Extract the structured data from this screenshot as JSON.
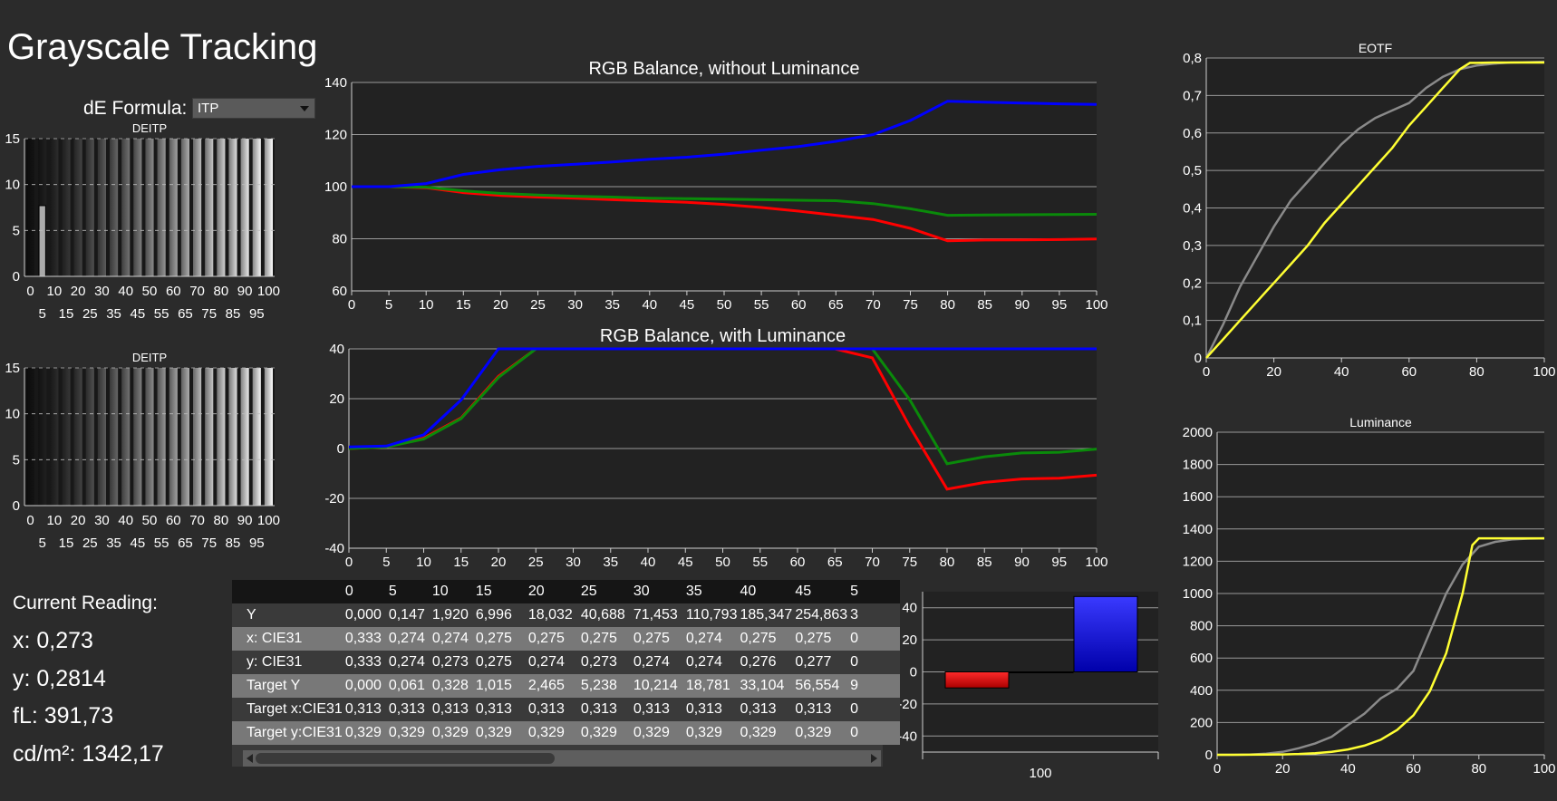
{
  "title": "Grayscale Tracking",
  "de_formula": {
    "label": "dE Formula:",
    "value": "ITP"
  },
  "current_reading": {
    "title": "Current Reading:",
    "x": "x: 0,273",
    "y": "y: 0,2814",
    "fL": "fL: 391,73",
    "cdm2": "cd/m²: 1342,17"
  },
  "colors": {
    "red": "#ff0000",
    "green": "#0a8a0a",
    "blue": "#0000ff",
    "yellow": "#ffff33",
    "gray": "#8a8a8a",
    "plot_bg": "#222222"
  },
  "chart_data": [
    {
      "id": "deitp_top",
      "type": "bar",
      "title": "DEITP",
      "categories": [
        0,
        5,
        10,
        15,
        20,
        25,
        30,
        35,
        40,
        45,
        50,
        55,
        60,
        65,
        70,
        75,
        80,
        85,
        90,
        95,
        100
      ],
      "values": [
        0,
        7.7,
        0,
        0,
        0,
        0,
        0,
        0,
        0,
        0,
        0,
        0,
        0,
        0,
        0,
        0,
        0,
        0,
        0,
        0,
        0
      ],
      "ylim": [
        0,
        15
      ],
      "yticks": [
        0,
        5,
        10,
        15
      ],
      "xticks_top": [
        "0",
        "10",
        "20",
        "30",
        "40",
        "50",
        "60",
        "70",
        "80",
        "90",
        "100"
      ],
      "xticks_bottom": [
        "5",
        "15",
        "25",
        "35",
        "45",
        "55",
        "65",
        "75",
        "85",
        "95"
      ]
    },
    {
      "id": "deitp_bottom",
      "type": "bar",
      "title": "DEITP",
      "categories": [
        0,
        5,
        10,
        15,
        20,
        25,
        30,
        35,
        40,
        45,
        50,
        55,
        60,
        65,
        70,
        75,
        80,
        85,
        90,
        95,
        100
      ],
      "values": [
        0,
        0,
        0,
        0,
        0,
        0,
        0,
        0,
        0,
        0,
        0,
        0,
        0,
        0,
        0,
        0,
        0,
        0,
        0,
        0,
        0
      ],
      "ylim": [
        0,
        15
      ],
      "yticks": [
        0,
        5,
        10,
        15
      ],
      "xticks_top": [
        "0",
        "10",
        "20",
        "30",
        "40",
        "50",
        "60",
        "70",
        "80",
        "90",
        "100"
      ],
      "xticks_bottom": [
        "5",
        "15",
        "25",
        "35",
        "45",
        "55",
        "65",
        "75",
        "85",
        "95"
      ]
    },
    {
      "id": "rgb_without",
      "type": "line",
      "title": "RGB Balance, without Luminance",
      "x": [
        0,
        5,
        10,
        15,
        20,
        25,
        30,
        35,
        40,
        45,
        50,
        55,
        60,
        65,
        70,
        75,
        80,
        85,
        90,
        95,
        100
      ],
      "xlim": [
        0,
        100
      ],
      "ylim": [
        60,
        140
      ],
      "yticks": [
        60,
        80,
        100,
        120,
        140
      ],
      "xticks": [
        0,
        5,
        10,
        15,
        20,
        25,
        30,
        35,
        40,
        45,
        50,
        55,
        60,
        65,
        70,
        75,
        80,
        85,
        90,
        95,
        100
      ],
      "series": [
        {
          "color": "red",
          "values": [
            100,
            100,
            99.6,
            97.7,
            96.6,
            96.0,
            95.6,
            95.0,
            94.5,
            94.0,
            93.2,
            92.0,
            90.6,
            89.0,
            87.4,
            84,
            79.2,
            79.5,
            79.6,
            79.7,
            79.9
          ]
        },
        {
          "color": "green",
          "values": [
            100,
            100,
            99.8,
            98.4,
            97.4,
            96.8,
            96.3,
            96.0,
            95.6,
            95.4,
            95.2,
            95.0,
            94.8,
            94.6,
            93.5,
            91.5,
            89,
            89.1,
            89.2,
            89.3,
            89.4
          ]
        },
        {
          "color": "blue",
          "values": [
            100,
            100,
            101.2,
            104.7,
            106.5,
            107.8,
            108.6,
            109.5,
            110.5,
            111.3,
            112.5,
            114,
            115.4,
            117.4,
            120,
            125.4,
            132.8,
            132.4,
            132.1,
            131.8,
            131.6
          ]
        }
      ]
    },
    {
      "id": "rgb_with",
      "type": "line",
      "title": "RGB Balance, with Luminance",
      "x": [
        0,
        5,
        10,
        15,
        20,
        25,
        30,
        35,
        40,
        45,
        50,
        55,
        60,
        65,
        70,
        75,
        80,
        85,
        90,
        95,
        100
      ],
      "xlim": [
        0,
        100
      ],
      "ylim": [
        -40,
        40
      ],
      "yticks": [
        -40,
        -20,
        0,
        20,
        40
      ],
      "xticks": [
        0,
        5,
        10,
        15,
        20,
        25,
        30,
        35,
        40,
        45,
        50,
        55,
        60,
        65,
        70,
        75,
        80,
        85,
        90,
        95,
        100
      ],
      "series": [
        {
          "color": "red",
          "values": [
            0,
            0.6,
            4.2,
            12.3,
            29,
            40,
            40,
            40,
            40,
            40,
            40,
            40,
            40,
            40,
            36.4,
            8.8,
            -16.3,
            -13.6,
            -12.2,
            -11.9,
            -10.7
          ]
        },
        {
          "color": "green",
          "values": [
            0,
            0.6,
            3.8,
            12,
            28.5,
            40,
            40,
            40,
            40,
            40,
            40,
            40,
            40,
            40,
            40,
            19.6,
            -6.1,
            -3.3,
            -1.8,
            -1.5,
            -0.2
          ]
        },
        {
          "color": "blue",
          "values": [
            0.6,
            1,
            5.5,
            19.5,
            40,
            40,
            40,
            40,
            40,
            40,
            40,
            40,
            40,
            40,
            40,
            40,
            40,
            40,
            40,
            40,
            40
          ]
        }
      ]
    },
    {
      "id": "current_bars",
      "type": "bar",
      "categories": [
        "100"
      ],
      "series": [
        {
          "color": "red",
          "values": [
            -10
          ]
        },
        {
          "color": "green",
          "values": [
            -0.3
          ]
        },
        {
          "color": "blue",
          "values": [
            47
          ]
        }
      ],
      "ylim": [
        -50,
        50
      ],
      "yticks": [
        -40,
        -20,
        0,
        20,
        40
      ],
      "xlabel": "100"
    },
    {
      "id": "eotf",
      "type": "line",
      "title": "EOTF",
      "xlim": [
        0,
        100
      ],
      "ylim": [
        0,
        0.8
      ],
      "xticks": [
        0,
        20,
        40,
        60,
        80,
        100
      ],
      "yticks": [
        "0",
        "0,1",
        "0,2",
        "0,3",
        "0,4",
        "0,5",
        "0,6",
        "0,7",
        "0,8"
      ],
      "series": [
        {
          "color": "gray",
          "x": [
            0,
            5,
            10,
            15,
            20,
            25,
            30,
            35,
            40,
            45,
            50,
            55,
            60,
            65,
            70,
            75,
            80,
            85,
            90,
            95,
            100
          ],
          "values": [
            0,
            0.09,
            0.19,
            0.27,
            0.35,
            0.42,
            0.47,
            0.52,
            0.57,
            0.61,
            0.64,
            0.66,
            0.68,
            0.72,
            0.75,
            0.77,
            0.78,
            0.785,
            0.788,
            0.789,
            0.79
          ]
        },
        {
          "color": "yellow",
          "x": [
            0,
            5,
            10,
            15,
            20,
            25,
            30,
            35,
            40,
            45,
            50,
            55,
            60,
            65,
            70,
            75,
            78,
            80,
            85,
            90,
            95,
            100
          ],
          "values": [
            0,
            0.05,
            0.1,
            0.15,
            0.2,
            0.25,
            0.3,
            0.36,
            0.41,
            0.46,
            0.51,
            0.56,
            0.62,
            0.67,
            0.72,
            0.77,
            0.787,
            0.787,
            0.788,
            0.788,
            0.788,
            0.788
          ]
        }
      ]
    },
    {
      "id": "luminance",
      "type": "line",
      "title": "Luminance",
      "xlim": [
        0,
        100
      ],
      "ylim": [
        0,
        2000
      ],
      "xticks": [
        0,
        20,
        40,
        60,
        80,
        100
      ],
      "yticks": [
        0,
        200,
        400,
        600,
        800,
        1000,
        1200,
        1400,
        1600,
        1800,
        2000
      ],
      "series": [
        {
          "color": "gray",
          "x": [
            0,
            5,
            10,
            15,
            20,
            25,
            30,
            35,
            40,
            45,
            50,
            55,
            60,
            65,
            70,
            75,
            80,
            85,
            90,
            95,
            100
          ],
          "values": [
            0,
            0.15,
            1.9,
            7,
            18,
            41,
            71,
            111,
            185,
            255,
            350,
            410,
            520,
            760,
            1000,
            1180,
            1290,
            1320,
            1335,
            1340,
            1342
          ]
        },
        {
          "color": "yellow",
          "x": [
            0,
            5,
            10,
            15,
            20,
            25,
            30,
            35,
            40,
            45,
            50,
            55,
            60,
            65,
            70,
            75,
            78,
            80,
            85,
            90,
            95,
            100
          ],
          "values": [
            0,
            0.06,
            0.33,
            1,
            2.5,
            5.2,
            10.2,
            18.8,
            33.1,
            56.6,
            93,
            154,
            245,
            393,
            629,
            1000,
            1300,
            1342,
            1342,
            1342,
            1342,
            1342
          ]
        }
      ]
    },
    {
      "id": "data_table",
      "type": "table",
      "columns": [
        "",
        "0",
        "5",
        "10",
        "15",
        "20",
        "25",
        "30",
        "35",
        "40",
        "45",
        "5"
      ],
      "rows": [
        {
          "label": "Y",
          "cells": [
            "0,000",
            "0,147",
            "1,920",
            "6,996",
            "18,032",
            "40,688",
            "71,453",
            "110,793",
            "185,347",
            "254,863",
            "3"
          ]
        },
        {
          "label": "x: CIE31",
          "cells": [
            "0,333",
            "0,274",
            "0,274",
            "0,275",
            "0,275",
            "0,275",
            "0,275",
            "0,274",
            "0,275",
            "0,275",
            "0"
          ]
        },
        {
          "label": "y: CIE31",
          "cells": [
            "0,333",
            "0,274",
            "0,273",
            "0,275",
            "0,274",
            "0,273",
            "0,274",
            "0,274",
            "0,276",
            "0,277",
            "0"
          ]
        },
        {
          "label": "Target Y",
          "cells": [
            "0,000",
            "0,061",
            "0,328",
            "1,015",
            "2,465",
            "5,238",
            "10,214",
            "18,781",
            "33,104",
            "56,554",
            "9"
          ]
        },
        {
          "label": "Target x:CIE31",
          "cells": [
            "0,313",
            "0,313",
            "0,313",
            "0,313",
            "0,313",
            "0,313",
            "0,313",
            "0,313",
            "0,313",
            "0,313",
            "0"
          ]
        },
        {
          "label": "Target y:CIE31",
          "cells": [
            "0,329",
            "0,329",
            "0,329",
            "0,329",
            "0,329",
            "0,329",
            "0,329",
            "0,329",
            "0,329",
            "0,329",
            "0"
          ]
        }
      ]
    }
  ]
}
